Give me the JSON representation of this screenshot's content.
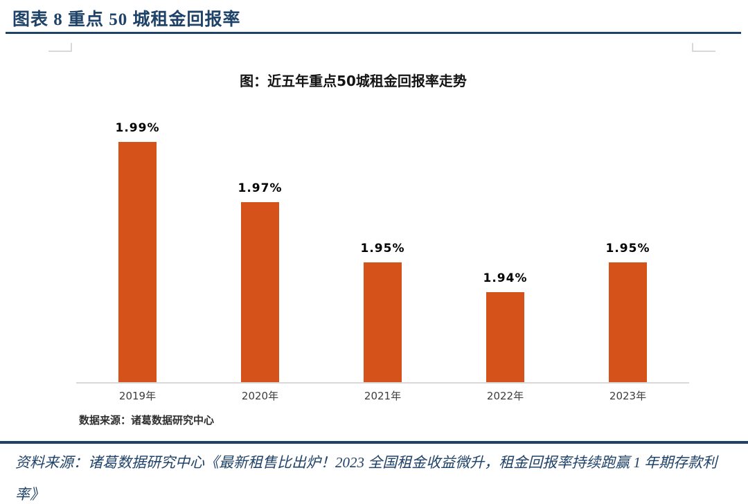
{
  "header": {
    "title": "图表 8  重点 50 城租金回报率"
  },
  "chart": {
    "title": "图：近五年重点50城租金回报率走势",
    "source_note": "数据来源：诸葛数据研究中心"
  },
  "chart_data": {
    "type": "bar",
    "title": "图：近五年重点50城租金回报率走势",
    "categories": [
      "2019年",
      "2020年",
      "2021年",
      "2022年",
      "2023年"
    ],
    "values": [
      1.99,
      1.97,
      1.95,
      1.94,
      1.95
    ],
    "data_labels": [
      "1.99%",
      "1.97%",
      "1.95%",
      "1.94%",
      "1.95%"
    ],
    "xlabel": "",
    "ylabel": "",
    "ylim": [
      1.91,
      2.0
    ],
    "grid": false,
    "legend": false,
    "bar_color": "#d5521b"
  },
  "footer": {
    "source": "资料来源：诸葛数据研究中心《最新租售比出炉！2023 全国租金收益微升，租金回报率持续跑赢 1 年期存款利率》"
  },
  "colors": {
    "accent_navy": "#1e4268",
    "bar_orange": "#d5521b",
    "axis_line": "#d9d9d9"
  }
}
